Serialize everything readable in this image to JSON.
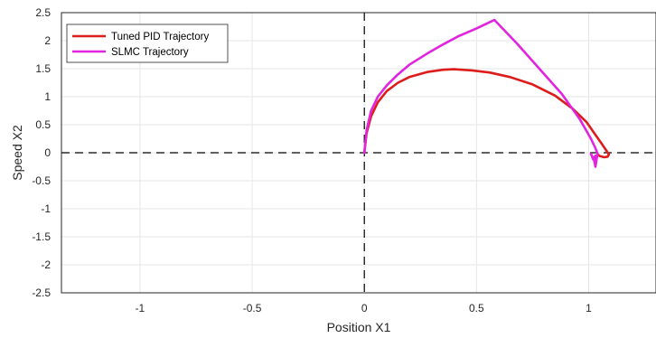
{
  "chart_data": {
    "type": "line",
    "title": "",
    "xlabel": "Position X1",
    "ylabel": "Speed X2",
    "xlim": [
      -1.35,
      1.3
    ],
    "ylim": [
      -2.5,
      2.5
    ],
    "xticks": [
      -1,
      -0.5,
      0,
      0.5,
      1
    ],
    "xtick_labels": [
      "-1",
      "-0.5",
      "0",
      "0.5",
      "1"
    ],
    "yticks": [
      -2.5,
      -2,
      -1.5,
      -1,
      -0.5,
      0,
      0.5,
      1,
      1.5,
      2,
      2.5
    ],
    "ytick_labels": [
      "-2.5",
      "-2",
      "-1.5",
      "-1",
      "-0.5",
      "0",
      "0.5",
      "1",
      "1.5",
      "2",
      "2.5"
    ],
    "grid": true,
    "legend_position": "top-left",
    "reference_lines": [
      {
        "orientation": "vertical",
        "value": 0,
        "style": "dashed",
        "color": "#000000"
      },
      {
        "orientation": "horizontal",
        "value": 0,
        "style": "dashed",
        "color": "#000000"
      }
    ],
    "series": [
      {
        "name": "Tuned PID Trajectory",
        "color": "#dd1c1c",
        "x": [
          0.0,
          0.01,
          0.03,
          0.06,
          0.1,
          0.15,
          0.2,
          0.28,
          0.35,
          0.4,
          0.48,
          0.56,
          0.65,
          0.75,
          0.85,
          0.93,
          0.99,
          1.03,
          1.06,
          1.08,
          1.09,
          1.085,
          1.07,
          1.05,
          1.04
        ],
        "y": [
          0.0,
          0.35,
          0.65,
          0.9,
          1.1,
          1.25,
          1.35,
          1.44,
          1.48,
          1.49,
          1.47,
          1.43,
          1.35,
          1.22,
          1.02,
          0.78,
          0.55,
          0.32,
          0.15,
          0.03,
          -0.03,
          -0.07,
          -0.08,
          -0.06,
          -0.03
        ]
      },
      {
        "name": "SLMC Trajectory",
        "color": "#e024e0",
        "x": [
          0.0,
          0.01,
          0.03,
          0.06,
          0.1,
          0.15,
          0.2,
          0.28,
          0.35,
          0.42,
          0.5,
          0.58,
          0.68,
          0.78,
          0.88,
          0.96,
          1.01,
          1.03,
          1.04,
          1.035,
          1.03,
          1.025,
          1.03,
          1.02,
          1.01,
          1.02,
          1.03
        ],
        "y": [
          0.0,
          0.4,
          0.75,
          1.0,
          1.2,
          1.4,
          1.57,
          1.77,
          1.93,
          2.08,
          2.22,
          2.37,
          1.95,
          1.5,
          1.05,
          0.6,
          0.25,
          0.08,
          -0.02,
          -0.12,
          -0.25,
          -0.15,
          -0.05,
          -0.12,
          -0.02,
          -0.1,
          -0.2
        ]
      }
    ]
  }
}
